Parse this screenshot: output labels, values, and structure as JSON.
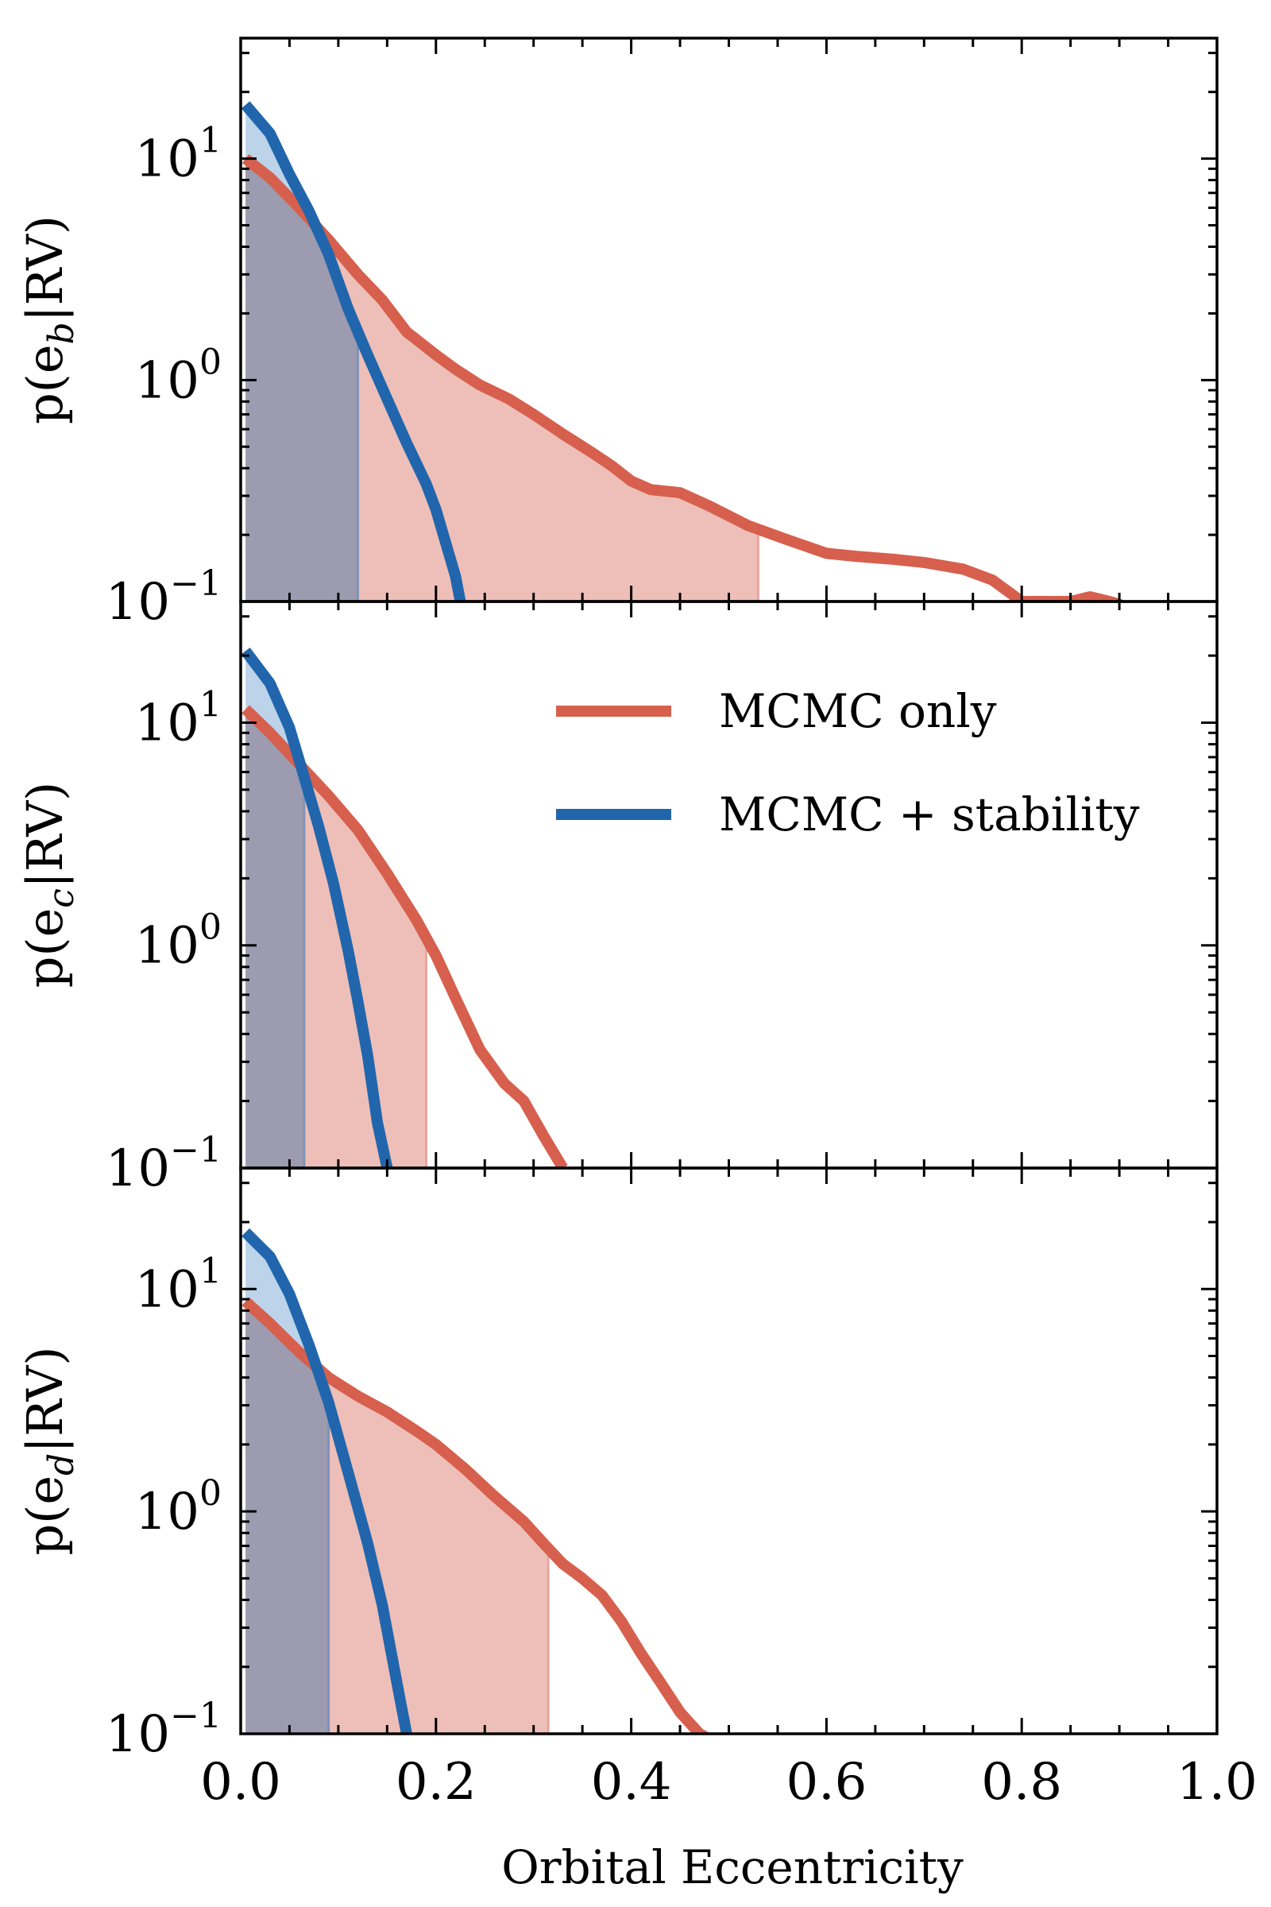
{
  "figure": {
    "xlabel": "Orbital Eccentricity",
    "colors": {
      "mcmc_line": "#d6604d",
      "mcmc_fill": "#eebfb8",
      "stability_line": "#2166ac",
      "stability_fill": "#bcd3ea",
      "overlap_fill": "#9d9bb0",
      "axis": "#000000"
    }
  },
  "chart_data": [
    {
      "type": "line",
      "panel": "b",
      "ylabel_prefix": "p(e",
      "ylabel_sub": "b",
      "ylabel_suffix": "|RV)",
      "yscale": "log",
      "ylim": [
        0.1,
        35
      ],
      "xlim": [
        0,
        1
      ],
      "x_ticks": [
        "0.0",
        "0.2",
        "0.4",
        "0.6",
        "0.8",
        "1.0"
      ],
      "y_ticks": [
        {
          "value": 0.1,
          "base": "10",
          "exp": "−1"
        },
        {
          "value": 1,
          "base": "10",
          "exp": "0"
        },
        {
          "value": 10,
          "base": "10",
          "exp": "1"
        }
      ],
      "legend": null,
      "series": [
        {
          "name": "MCMC only",
          "fill_to": 0.53,
          "points": [
            [
              0.005,
              10
            ],
            [
              0.03,
              8.2
            ],
            [
              0.06,
              6.0
            ],
            [
              0.09,
              4.3
            ],
            [
              0.12,
              3.0
            ],
            [
              0.145,
              2.3
            ],
            [
              0.17,
              1.65
            ],
            [
              0.2,
              1.3
            ],
            [
              0.22,
              1.12
            ],
            [
              0.245,
              0.95
            ],
            [
              0.275,
              0.82
            ],
            [
              0.3,
              0.7
            ],
            [
              0.33,
              0.57
            ],
            [
              0.36,
              0.47
            ],
            [
              0.38,
              0.41
            ],
            [
              0.4,
              0.35
            ],
            [
              0.42,
              0.32
            ],
            [
              0.45,
              0.31
            ],
            [
              0.48,
              0.27
            ],
            [
              0.52,
              0.22
            ],
            [
              0.56,
              0.19
            ],
            [
              0.6,
              0.165
            ],
            [
              0.63,
              0.16
            ],
            [
              0.67,
              0.155
            ],
            [
              0.7,
              0.15
            ],
            [
              0.74,
              0.14
            ],
            [
              0.77,
              0.125
            ],
            [
              0.8,
              0.1
            ],
            [
              0.82,
              0.1
            ],
            [
              0.85,
              0.1
            ],
            [
              0.87,
              0.105
            ],
            [
              0.89,
              0.1
            ],
            [
              0.91,
              0.094
            ]
          ]
        },
        {
          "name": "MCMC + stability",
          "fill_to": 0.12,
          "points": [
            [
              0.005,
              17.5
            ],
            [
              0.03,
              13.0
            ],
            [
              0.05,
              8.5
            ],
            [
              0.07,
              5.8
            ],
            [
              0.09,
              3.7
            ],
            [
              0.11,
              2.1
            ],
            [
              0.13,
              1.3
            ],
            [
              0.15,
              0.82
            ],
            [
              0.17,
              0.52
            ],
            [
              0.19,
              0.34
            ],
            [
              0.2,
              0.26
            ],
            [
              0.22,
              0.13
            ],
            [
              0.225,
              0.1
            ]
          ]
        }
      ]
    },
    {
      "type": "line",
      "panel": "c",
      "ylabel_prefix": "p(e",
      "ylabel_sub": "c",
      "ylabel_suffix": "|RV)",
      "yscale": "log",
      "ylim": [
        0.1,
        35
      ],
      "xlim": [
        0,
        1
      ],
      "x_ticks": [
        "0.0",
        "0.2",
        "0.4",
        "0.6",
        "0.8",
        "1.0"
      ],
      "y_ticks": [
        {
          "value": 0.1,
          "base": "10",
          "exp": "−1"
        },
        {
          "value": 1,
          "base": "10",
          "exp": "0"
        },
        {
          "value": 10,
          "base": "10",
          "exp": "1"
        }
      ],
      "legend": {
        "placement": "upper-right",
        "entries": [
          "MCMC only",
          "MCMC + stability"
        ]
      },
      "series": [
        {
          "name": "MCMC only",
          "fill_to": 0.19,
          "points": [
            [
              0.005,
              11.5
            ],
            [
              0.03,
              9.0
            ],
            [
              0.06,
              6.5
            ],
            [
              0.09,
              4.7
            ],
            [
              0.12,
              3.3
            ],
            [
              0.15,
              2.1
            ],
            [
              0.18,
              1.3
            ],
            [
              0.2,
              0.9
            ],
            [
              0.22,
              0.58
            ],
            [
              0.245,
              0.34
            ],
            [
              0.27,
              0.24
            ],
            [
              0.29,
              0.2
            ],
            [
              0.31,
              0.14
            ],
            [
              0.33,
              0.1
            ]
          ]
        },
        {
          "name": "MCMC + stability",
          "fill_to": 0.065,
          "points": [
            [
              0.005,
              21
            ],
            [
              0.03,
              15
            ],
            [
              0.05,
              9.5
            ],
            [
              0.065,
              5.7
            ],
            [
              0.08,
              3.4
            ],
            [
              0.095,
              1.9
            ],
            [
              0.11,
              0.95
            ],
            [
              0.12,
              0.56
            ],
            [
              0.13,
              0.32
            ],
            [
              0.14,
              0.16
            ],
            [
              0.15,
              0.1
            ]
          ]
        }
      ]
    },
    {
      "type": "line",
      "panel": "d",
      "ylabel_prefix": "p(e",
      "ylabel_sub": "d",
      "ylabel_suffix": "|RV)",
      "yscale": "log",
      "ylim": [
        0.1,
        35
      ],
      "xlim": [
        0,
        1
      ],
      "x_ticks": [
        "0.0",
        "0.2",
        "0.4",
        "0.6",
        "0.8",
        "1.0"
      ],
      "y_ticks": [
        {
          "value": 0.1,
          "base": "10",
          "exp": "−1"
        },
        {
          "value": 1,
          "base": "10",
          "exp": "0"
        },
        {
          "value": 10,
          "base": "10",
          "exp": "1"
        }
      ],
      "legend": null,
      "series": [
        {
          "name": "MCMC only",
          "fill_to": 0.315,
          "points": [
            [
              0.005,
              8.8
            ],
            [
              0.03,
              7.0
            ],
            [
              0.06,
              5.2
            ],
            [
              0.09,
              4.0
            ],
            [
              0.12,
              3.3
            ],
            [
              0.15,
              2.8
            ],
            [
              0.18,
              2.3
            ],
            [
              0.2,
              2.0
            ],
            [
              0.23,
              1.55
            ],
            [
              0.26,
              1.17
            ],
            [
              0.29,
              0.9
            ],
            [
              0.31,
              0.72
            ],
            [
              0.33,
              0.58
            ],
            [
              0.35,
              0.5
            ],
            [
              0.37,
              0.42
            ],
            [
              0.39,
              0.32
            ],
            [
              0.41,
              0.23
            ],
            [
              0.43,
              0.17
            ],
            [
              0.45,
              0.125
            ],
            [
              0.47,
              0.1
            ],
            [
              0.49,
              0.09
            ]
          ]
        },
        {
          "name": "MCMC + stability",
          "fill_to": 0.09,
          "points": [
            [
              0.005,
              18
            ],
            [
              0.03,
              14
            ],
            [
              0.05,
              9.5
            ],
            [
              0.07,
              5.6
            ],
            [
              0.09,
              3.1
            ],
            [
              0.11,
              1.5
            ],
            [
              0.13,
              0.72
            ],
            [
              0.145,
              0.38
            ],
            [
              0.16,
              0.17
            ],
            [
              0.17,
              0.1
            ]
          ]
        }
      ]
    }
  ]
}
